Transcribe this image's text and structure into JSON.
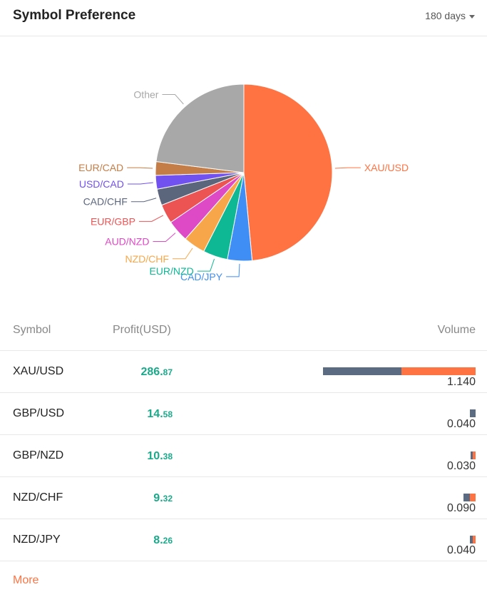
{
  "header": {
    "title": "Symbol Preference",
    "period": "180 days"
  },
  "table": {
    "headers": {
      "symbol": "Symbol",
      "profit": "Profit(USD)",
      "volume": "Volume"
    },
    "rows": [
      {
        "symbol": "XAU/USD",
        "profit_int": "286.",
        "profit_dec": "87",
        "buy": 0.588,
        "sell": 0.552,
        "volume": "1.140"
      },
      {
        "symbol": "GBP/USD",
        "profit_int": "14.",
        "profit_dec": "58",
        "buy": 0.04,
        "sell": 0.0,
        "volume": "0.040"
      },
      {
        "symbol": "GBP/NZD",
        "profit_int": "10.",
        "profit_dec": "38",
        "buy": 0.01,
        "sell": 0.02,
        "volume": "0.030"
      },
      {
        "symbol": "NZD/CHF",
        "profit_int": "9.",
        "profit_dec": "32",
        "buy": 0.05,
        "sell": 0.04,
        "volume": "0.090"
      },
      {
        "symbol": "NZD/JPY",
        "profit_int": "8.",
        "profit_dec": "26",
        "buy": 0.02,
        "sell": 0.02,
        "volume": "0.040"
      }
    ]
  },
  "more_label": "More",
  "colors": {
    "buy": "#5a6b82",
    "sell": "#ff7343",
    "profit": "#1aaa8a"
  },
  "chart_data": {
    "type": "pie",
    "slices": [
      {
        "label": "XAU/USD",
        "value": 48.5,
        "color": "#ff7343"
      },
      {
        "label": "CAD/JPY",
        "value": 4.5,
        "color": "#3f8ef5"
      },
      {
        "label": "EUR/NZD",
        "value": 4.5,
        "color": "#0eb894"
      },
      {
        "label": "NZD/CHF",
        "value": 4.0,
        "color": "#f7a74a"
      },
      {
        "label": "AUD/NZD",
        "value": 4.0,
        "color": "#de49c5"
      },
      {
        "label": "EUR/GBP",
        "value": 3.5,
        "color": "#ec5454"
      },
      {
        "label": "CAD/CHF",
        "value": 3.0,
        "color": "#5b667d"
      },
      {
        "label": "USD/CAD",
        "value": 2.5,
        "color": "#7251f1"
      },
      {
        "label": "EUR/CAD",
        "value": 2.5,
        "color": "#c57d47"
      },
      {
        "label": "Other",
        "value": 23.0,
        "color": "#a8a8a8"
      }
    ]
  }
}
